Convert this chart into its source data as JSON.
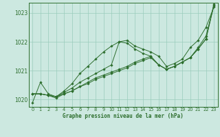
{
  "xlabel": "Graphe pression niveau de la mer (hPa)",
  "bg_color": "#cce8e0",
  "grid_color": "#99ccbb",
  "line_color": "#2d6e2d",
  "text_color": "#2d6e2d",
  "ylim": [
    1019.75,
    1023.35
  ],
  "xlim": [
    -0.5,
    23.5
  ],
  "yticks": [
    1020,
    1021,
    1022,
    1023
  ],
  "xticks": [
    0,
    1,
    2,
    3,
    4,
    5,
    6,
    7,
    8,
    9,
    10,
    11,
    12,
    13,
    14,
    15,
    16,
    17,
    18,
    19,
    20,
    21,
    22,
    23
  ],
  "series": [
    [
      1019.9,
      1020.6,
      1020.2,
      1020.1,
      1020.3,
      1020.55,
      1020.9,
      1021.15,
      1021.4,
      1021.65,
      1021.85,
      1022.0,
      1022.05,
      1021.85,
      1021.75,
      1021.65,
      1021.5,
      1021.15,
      1021.25,
      1021.4,
      1021.8,
      1022.05,
      1022.5,
      1023.2
    ],
    [
      1020.2,
      1020.2,
      1020.15,
      1020.1,
      1020.25,
      1020.4,
      1020.6,
      1020.75,
      1020.9,
      1021.05,
      1021.2,
      1022.0,
      1021.95,
      1021.75,
      1021.6,
      1021.5,
      1021.2,
      1021.05,
      1021.15,
      1021.3,
      1021.45,
      1021.8,
      1022.2,
      1023.25
    ],
    [
      1020.2,
      1020.2,
      1020.15,
      1020.1,
      1020.2,
      1020.3,
      1020.45,
      1020.6,
      1020.75,
      1020.85,
      1020.95,
      1021.05,
      1021.15,
      1021.3,
      1021.4,
      1021.5,
      1021.2,
      1021.05,
      1021.15,
      1021.3,
      1021.45,
      1021.75,
      1022.1,
      1023.3
    ],
    [
      1020.2,
      1020.2,
      1020.15,
      1020.05,
      1020.2,
      1020.3,
      1020.45,
      1020.55,
      1020.7,
      1020.8,
      1020.9,
      1021.0,
      1021.1,
      1021.25,
      1021.35,
      1021.45,
      1021.2,
      1021.05,
      1021.15,
      1021.3,
      1021.45,
      1021.75,
      1022.1,
      1023.25
    ]
  ]
}
